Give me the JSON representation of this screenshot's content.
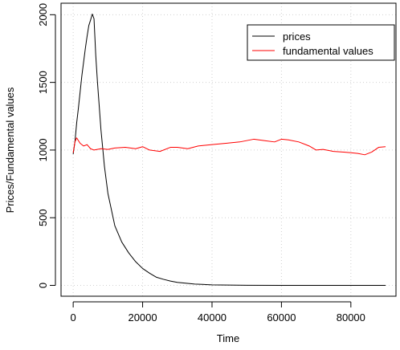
{
  "chart_data": {
    "type": "line",
    "title": "",
    "xlabel": "Time",
    "ylabel": "Prices/Fundamental values",
    "xlim": [
      -3500,
      93000
    ],
    "ylim": [
      -80,
      2085
    ],
    "x_ticks": [
      0,
      20000,
      40000,
      60000,
      80000
    ],
    "x_tick_labels": [
      "0",
      "20000",
      "40000",
      "60000",
      "80000"
    ],
    "y_ticks": [
      0,
      500,
      1000,
      1500,
      2000
    ],
    "y_tick_labels": [
      "0",
      "500",
      "1000",
      "1500",
      "2000"
    ],
    "grid": true,
    "legend_position": "top-right",
    "series": [
      {
        "name": "prices",
        "color": "#000000",
        "x": [
          0,
          500,
          1000,
          1500,
          2000,
          2500,
          3000,
          3500,
          4000,
          4500,
          5000,
          5500,
          6000,
          6500,
          7000,
          8000,
          9000,
          10000,
          12000,
          14000,
          16000,
          18000,
          20000,
          22000,
          24000,
          26000,
          28000,
          30000,
          35000,
          40000,
          45000,
          50000,
          60000,
          70000,
          80000,
          90000
        ],
        "values": [
          970,
          1060,
          1200,
          1310,
          1430,
          1550,
          1650,
          1750,
          1840,
          1920,
          1960,
          2005,
          1970,
          1700,
          1500,
          1150,
          880,
          680,
          440,
          320,
          240,
          175,
          125,
          90,
          60,
          45,
          32,
          22,
          10,
          4,
          2,
          1,
          0,
          0,
          0,
          0
        ]
      },
      {
        "name": "fundamental values",
        "color": "#ff0000",
        "x": [
          0,
          500,
          1000,
          1500,
          2000,
          3000,
          4000,
          5000,
          6000,
          8000,
          10000,
          12000,
          15000,
          18000,
          20000,
          22000,
          25000,
          28000,
          30000,
          33000,
          36000,
          40000,
          44000,
          48000,
          52000,
          55000,
          58000,
          60000,
          62000,
          65000,
          68000,
          70000,
          72000,
          75000,
          78000,
          80000,
          82000,
          84000,
          86000,
          88000,
          90000
        ],
        "values": [
          980,
          1060,
          1090,
          1070,
          1050,
          1030,
          1040,
          1010,
          1000,
          1010,
          1005,
          1015,
          1020,
          1010,
          1025,
          1000,
          990,
          1020,
          1020,
          1010,
          1030,
          1040,
          1050,
          1060,
          1080,
          1070,
          1060,
          1080,
          1075,
          1060,
          1030,
          1000,
          1005,
          990,
          985,
          980,
          975,
          965,
          985,
          1020,
          1025
        ]
      }
    ]
  }
}
